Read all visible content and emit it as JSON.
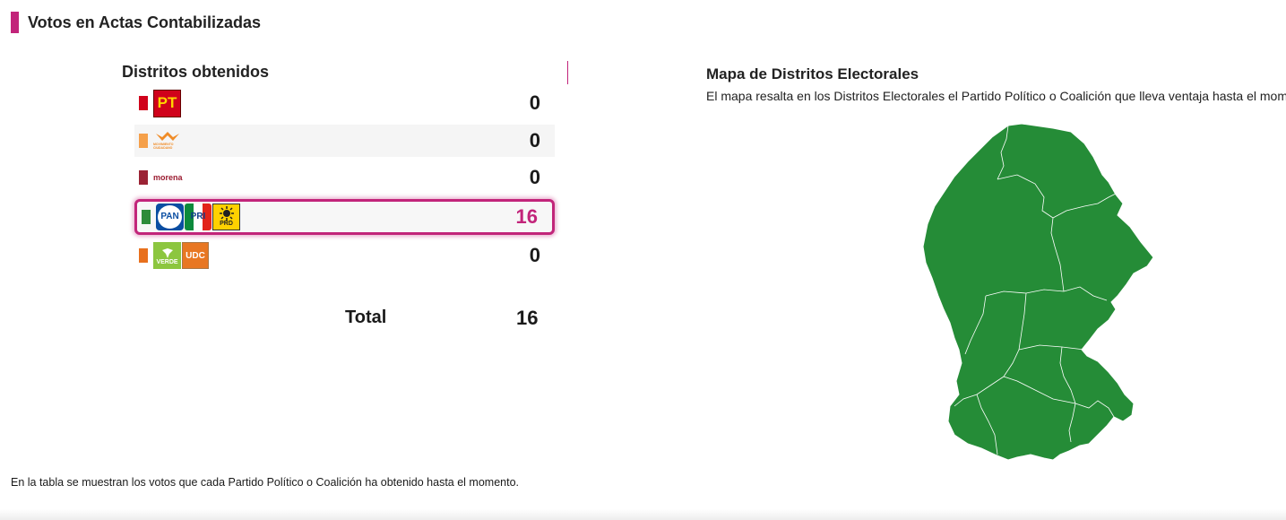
{
  "section": {
    "title": "Votos en Actas Contabilizadas",
    "accent_color": "#c2247a"
  },
  "districts": {
    "title": "Distritos obtenidos",
    "rows": [
      {
        "party_logos": [
          "PT"
        ],
        "color": "#d0021b",
        "value": "0",
        "highlighted": false
      },
      {
        "party_logos": [
          "MOVIMIENTO CIUDADANO"
        ],
        "color": "#f5a04a",
        "value": "0",
        "highlighted": false
      },
      {
        "party_logos": [
          "morena"
        ],
        "color": "#9b2335",
        "value": "0",
        "highlighted": false
      },
      {
        "party_logos": [
          "PAN",
          "PRI",
          "PRD"
        ],
        "color": "#2e8b3a",
        "value": "16",
        "highlighted": true
      },
      {
        "party_logos": [
          "VERDE",
          "UDC"
        ],
        "color": "#e8701d",
        "value": "0",
        "highlighted": false
      }
    ],
    "total_label": "Total",
    "total_value": "16"
  },
  "logo_text": {
    "pt": "PT",
    "mc": "MOVIMIENTO CIUDADANO",
    "morena": "morena",
    "pan": "PAN",
    "pri": "PRI",
    "prd": "PRD",
    "verde": "VERDE",
    "udc": "UDC"
  },
  "map": {
    "title": "Mapa de Distritos Electorales",
    "description": "El mapa resalta en los Distritos Electorales el Partido Político o Coalición que lleva ventaja hasta el momento.",
    "fill_color": "#258c37"
  },
  "footnote": "En la tabla se muestran los votos que cada Partido Político o Coalición ha obtenido hasta el momento."
}
